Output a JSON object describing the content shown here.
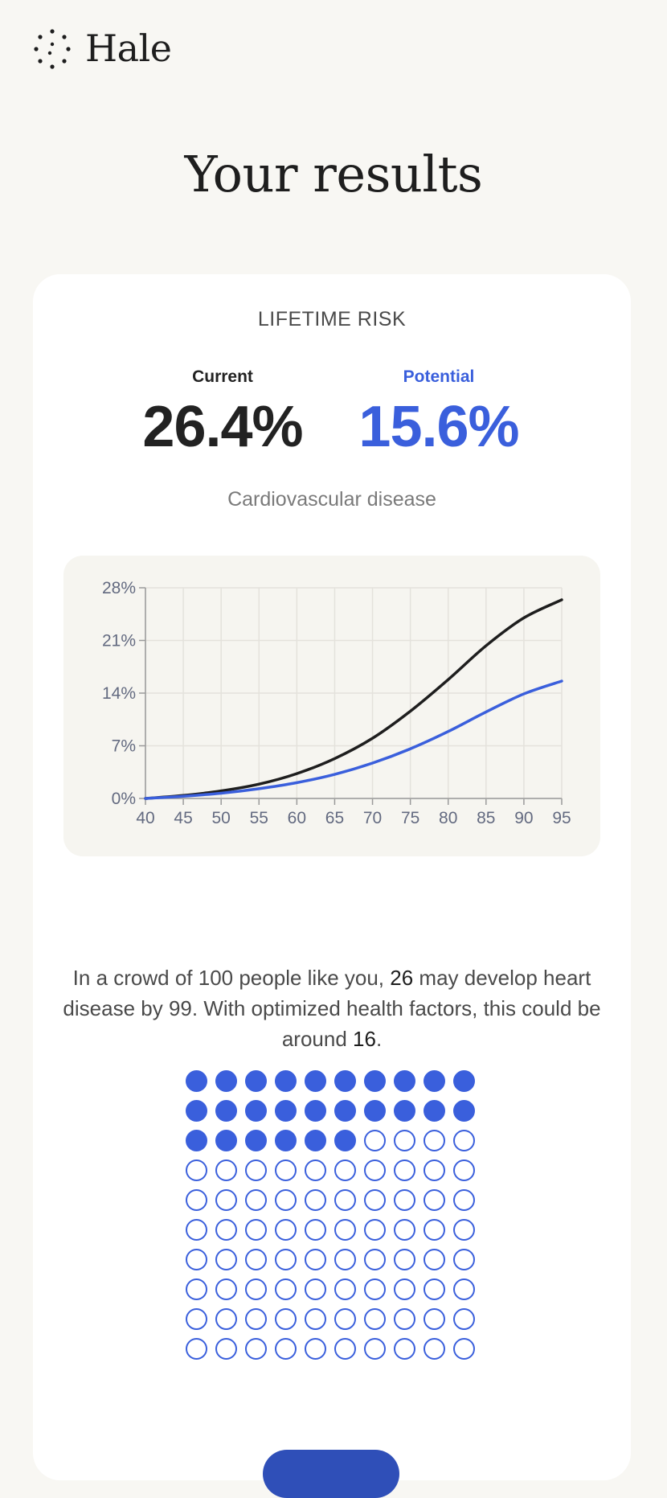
{
  "brand": {
    "name": "Hale",
    "logo_icon": "dotted-circle-logo-icon"
  },
  "page_title": "Your results",
  "card": {
    "section_label": "LIFETIME RISK",
    "current": {
      "label": "Current",
      "value": "26.4%"
    },
    "potential": {
      "label": "Potential",
      "value": "15.6%"
    },
    "disease": "Cardiovascular disease"
  },
  "chart_data": {
    "type": "line",
    "x": [
      40,
      45,
      50,
      55,
      60,
      65,
      70,
      75,
      80,
      85,
      90,
      95
    ],
    "x_ticks": [
      "40",
      "45",
      "50",
      "55",
      "60",
      "65",
      "70",
      "75",
      "80",
      "85",
      "90",
      "95"
    ],
    "y_ticks": [
      "0%",
      "7%",
      "14%",
      "21%",
      "28%"
    ],
    "xlim": [
      40,
      95
    ],
    "ylim": [
      0,
      28
    ],
    "grid": true,
    "series": [
      {
        "color": "#1e1e1e",
        "values": [
          0,
          0.4,
          1.0,
          1.9,
          3.3,
          5.3,
          8.0,
          11.6,
          15.8,
          20.3,
          24.0,
          26.4
        ]
      },
      {
        "color": "#3a5fdc",
        "values": [
          0,
          0.3,
          0.7,
          1.3,
          2.1,
          3.2,
          4.7,
          6.6,
          8.9,
          11.5,
          13.9,
          15.6
        ]
      }
    ]
  },
  "crowd": {
    "text_prefix": "In a crowd of 100 people like you, ",
    "current_count": "26",
    "text_middle": " may develop heart disease by 99. With optimized health factors, this could be around ",
    "potential_count": "16",
    "text_suffix": ".",
    "total": 100,
    "filled": 26,
    "dot_color": "#3a5fdc"
  },
  "colors": {
    "accent": "#3a5fdc",
    "background": "#f8f7f3",
    "card": "#ffffff"
  }
}
